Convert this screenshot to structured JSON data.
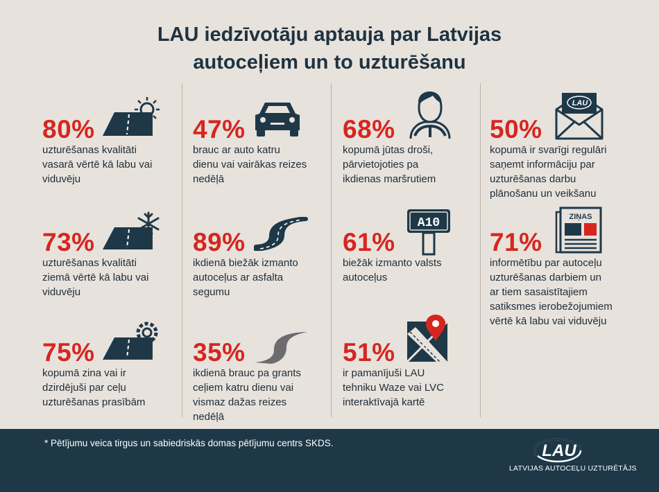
{
  "title_line1": "LAU iedzīvotāju aptauja par Latvijas",
  "title_line2": "autoceļiem un to uzturēšanu",
  "stats": [
    {
      "pct": "80%",
      "text": "uzturēšanas kvalitāti\nvasarā vērtē kā labu vai\nviduvēju",
      "icon": "summer-road-icon"
    },
    {
      "pct": "73%",
      "text": "uzturēšanas kvalitāti\nziemā vērtē kā labu vai\nviduvēju",
      "icon": "winter-road-icon"
    },
    {
      "pct": "75%",
      "text": "kopumā zina vai ir\ndzirdējuši par ceļu\nuzturēšanas prasībām",
      "icon": "road-maintenance-icon"
    },
    {
      "pct": "47%",
      "text": "brauc ar auto katru\ndienu vai vairākas reizes\nnedēļā",
      "icon": "car-icon"
    },
    {
      "pct": "89%",
      "text": "ikdienā biežāk izmanto\nautoceļus ar asfalta\nsegumu",
      "icon": "asphalt-road-icon"
    },
    {
      "pct": "35%",
      "text": "ikdienā brauc pa grants\nceļiem katru dienu vai\nvismaz dažas reizes\nnedēļā",
      "icon": "gravel-road-icon"
    },
    {
      "pct": "68%",
      "text": "kopumā jūtas droši,\npārvietojoties pa\nikdienas maršrutiem",
      "icon": "driver-icon"
    },
    {
      "pct": "61%",
      "text": "biežāk izmanto valsts\nautoceļus",
      "icon": "road-sign-icon"
    },
    {
      "pct": "51%",
      "text": "ir pamanījuši LAU\ntehniku Waze vai LVC\ninteraktīvajā kartē",
      "icon": "map-pin-icon"
    },
    {
      "pct": "50%",
      "text": "kopumā ir svarīgi regulāri\nsaņemt informāciju par\nuzturēšanas darbu\nplānošanu un veikšanu",
      "icon": "envelope-icon"
    },
    {
      "pct": "71%",
      "text": "informētību par autoceļu\nuzturēšanas darbiem un\nar tiem sasaistītajiem\nsatiksmes ierobežojumiem\nvērtē kā labu vai viduvēju",
      "icon": "newspaper-icon"
    }
  ],
  "icons_text": {
    "road_sign": "A10",
    "news": "ZIŅAS",
    "envelope_logo": "LAU"
  },
  "footer": {
    "footnote_mark": "*",
    "footnote": "Pētījumu veica tirgus un sabiedriskās domas pētījumu centrs SKDS.",
    "logo_text": "LAU",
    "brand": "LATVIJAS AUTOCEĻU UZTURĒTĀJS"
  },
  "colors": {
    "background": "#e7e2dc",
    "accent_red": "#d6261f",
    "navy": "#1e3848"
  }
}
